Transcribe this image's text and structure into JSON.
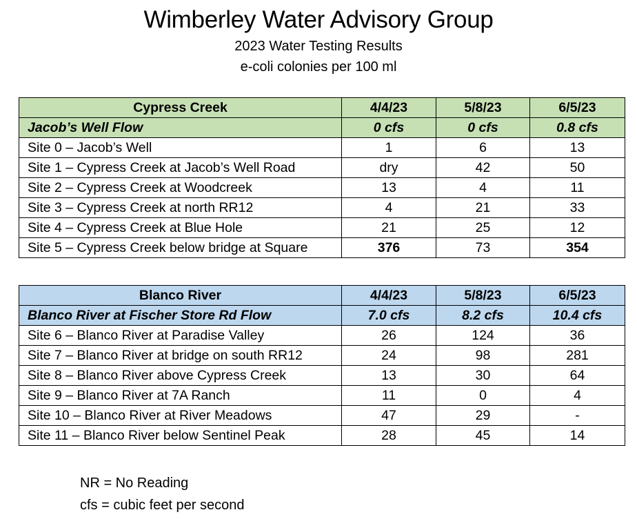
{
  "header": {
    "title": "Wimberley Water Advisory Group",
    "subtitle": "2023 Water Testing Results",
    "units": "e-coli colonies per 100 ml"
  },
  "colors": {
    "cypress_header_bg": "#c6e0b4",
    "blanco_header_bg": "#bdd7ee"
  },
  "tables": [
    {
      "name": "Cypress Creek",
      "dates": [
        "4/4/23",
        "5/8/23",
        "6/5/23"
      ],
      "flow_label": "Jacob’s Well Flow",
      "flows": [
        "0 cfs",
        "0 cfs",
        "0.8 cfs"
      ],
      "rows": [
        {
          "site": "Site 0 – Jacob’s Well",
          "values": [
            "1",
            "6",
            "13"
          ]
        },
        {
          "site": "Site 1 – Cypress Creek at Jacob’s Well Road",
          "values": [
            "dry",
            "42",
            "50"
          ]
        },
        {
          "site": "Site 2 – Cypress Creek at Woodcreek",
          "values": [
            "13",
            "4",
            "11"
          ]
        },
        {
          "site": "Site 3 – Cypress Creek at north RR12",
          "values": [
            "4",
            "21",
            "33"
          ]
        },
        {
          "site": "Site 4 – Cypress Creek at Blue Hole",
          "values": [
            "21",
            "25",
            "12"
          ]
        },
        {
          "site": "Site 5 – Cypress Creek below bridge at Square",
          "values": [
            "376",
            "73",
            "354"
          ]
        }
      ]
    },
    {
      "name": "Blanco River",
      "dates": [
        "4/4/23",
        "5/8/23",
        "6/5/23"
      ],
      "flow_label": "Blanco River at Fischer Store Rd Flow",
      "flows": [
        "7.0 cfs",
        "8.2 cfs",
        "10.4 cfs"
      ],
      "rows": [
        {
          "site": "Site 6 – Blanco River at Paradise Valley",
          "values": [
            "26",
            "124",
            "36"
          ]
        },
        {
          "site": "Site 7 – Blanco River at bridge on south RR12",
          "values": [
            "24",
            "98",
            "281"
          ]
        },
        {
          "site": "Site 8 – Blanco River above Cypress Creek",
          "values": [
            "13",
            "30",
            "64"
          ]
        },
        {
          "site": "Site 9 – Blanco River at 7A Ranch",
          "values": [
            "11",
            "0",
            "4"
          ]
        },
        {
          "site": "Site 10 – Blanco River at River Meadows",
          "values": [
            "47",
            "29",
            "-"
          ]
        },
        {
          "site": "Site 11 – Blanco River below Sentinel Peak",
          "values": [
            "28",
            "45",
            "14"
          ]
        }
      ]
    }
  ],
  "legend": {
    "nr": "NR = No Reading",
    "cfs": "cfs = cubic feet per second"
  }
}
